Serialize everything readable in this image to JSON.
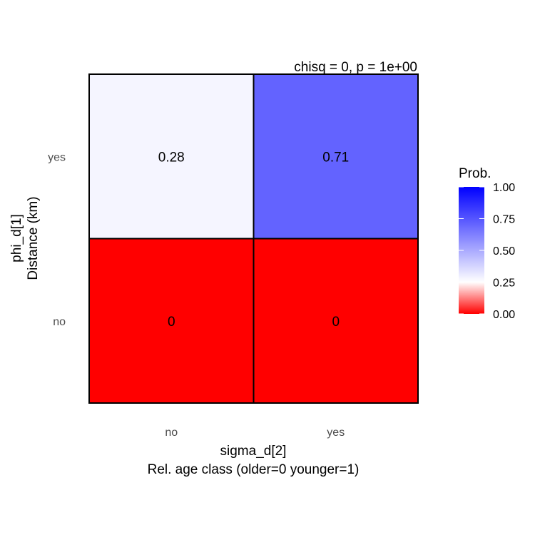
{
  "chart_data": {
    "type": "heatmap",
    "annotation": "chisq = 0, p = 1e+00",
    "x_categories": [
      "no",
      "yes"
    ],
    "y_categories": [
      "no",
      "yes"
    ],
    "xlabel_line1": "sigma_d[2]",
    "xlabel_line2": "Rel. age class (older=0 younger=1)",
    "ylabel_line1": "phi_d[1]",
    "ylabel_line2": "Distance (km)",
    "cells": [
      {
        "x": "no",
        "y": "yes",
        "value": 0.28,
        "label": "0.28"
      },
      {
        "x": "yes",
        "y": "yes",
        "value": 0.71,
        "label": "0.71"
      },
      {
        "x": "no",
        "y": "no",
        "value": 0,
        "label": "0"
      },
      {
        "x": "yes",
        "y": "no",
        "value": 0,
        "label": "0"
      }
    ],
    "legend": {
      "title": "Prob.",
      "ticks": [
        "1.00",
        "0.75",
        "0.50",
        "0.25",
        "0.00"
      ],
      "tick_values": [
        1.0,
        0.75,
        0.5,
        0.25,
        0.0
      ],
      "color_low": "#ff0000",
      "color_mid": "#ffffff",
      "color_high": "#0000ff",
      "midpoint": 0.25
    }
  }
}
